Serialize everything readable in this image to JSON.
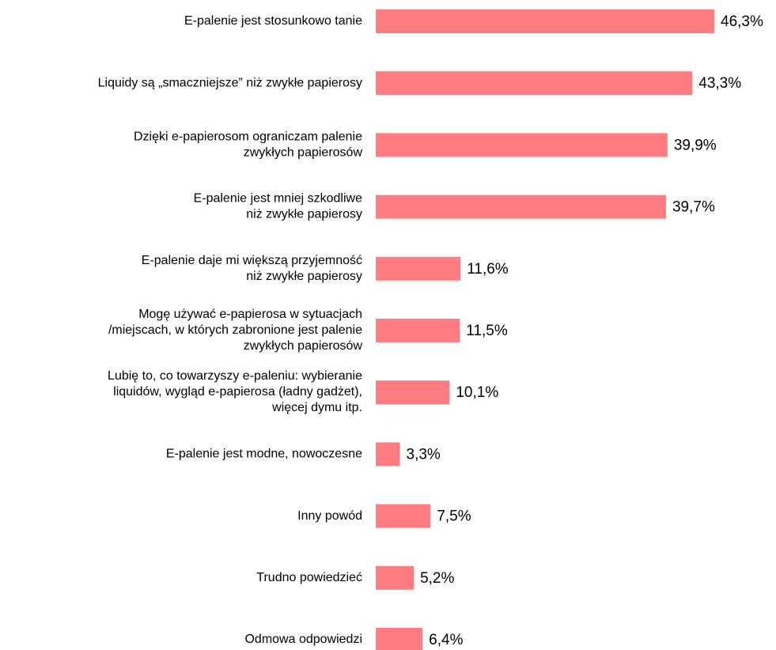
{
  "chart_data": {
    "type": "bar",
    "orientation": "horizontal",
    "color": "#ff7c80",
    "categories": [
      "E-palenie jest stosunkowo tanie",
      "Liquidy są „smaczniejsze” niż zwykłe papierosy",
      "Dzięki e-papierosom ograniczam palenie\nzwykłych papierosów",
      "E-palenie jest mniej szkodliwe\nniż zwykłe papierosy",
      "E-palenie daje mi większą przyjemność\nniż zwykłe papierosy",
      "Mogę używać e-papierosa w sytuacjach\n/miejscach, w których zabronione jest palenie\nzwykłych papierosów",
      "Lubię to, co towarzyszy e-paleniu: wybieranie\nliquidów, wygląd e-papierosa (ładny gadżet),\nwięcej dymu itp.",
      "E-palenie jest modne, nowoczesne",
      "Inny powód",
      "Trudno powiedzieć",
      "Odmowa odpowiedzi"
    ],
    "values": [
      46.3,
      43.3,
      39.9,
      39.7,
      11.6,
      11.5,
      10.1,
      3.3,
      7.5,
      5.2,
      6.4
    ],
    "value_labels": [
      "46,3%",
      "43,3%",
      "39,9%",
      "39,7%",
      "11,6%",
      "11,5%",
      "10,1%",
      "3,3%",
      "7,5%",
      "5,2%",
      "6,4%"
    ]
  }
}
